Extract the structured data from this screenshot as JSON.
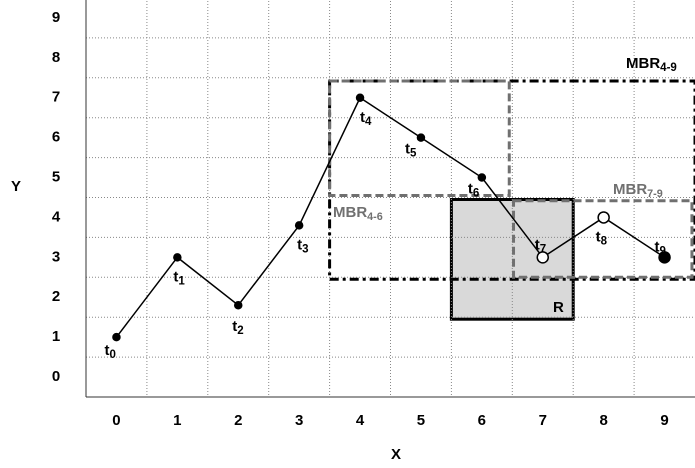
{
  "chart_data": {
    "type": "line",
    "x_label": "X",
    "y_label": "Y",
    "x": [
      0,
      1,
      2,
      3,
      4,
      5,
      6,
      7,
      8,
      9
    ],
    "values": [
      1,
      3,
      1.8,
      3.8,
      7,
      6,
      5,
      3,
      4,
      3
    ],
    "markers": [
      "dot",
      "dot",
      "dot",
      "dot",
      "dot",
      "dot",
      "dot",
      "hollow",
      "hollow",
      "filled"
    ],
    "labels": [
      {
        "text": "t",
        "sub": "0"
      },
      {
        "text": "t",
        "sub": "1"
      },
      {
        "text": "t",
        "sub": "2"
      },
      {
        "text": "t",
        "sub": "3"
      },
      {
        "text": "t",
        "sub": "4"
      },
      {
        "text": "t",
        "sub": "5"
      },
      {
        "text": "t",
        "sub": "6"
      },
      {
        "text": "t",
        "sub": "7"
      },
      {
        "text": "t",
        "sub": "8"
      },
      {
        "text": "t",
        "sub": "9"
      }
    ],
    "color": "#000000",
    "xlim": [
      -0.5,
      9.5
    ],
    "ylim": [
      -0.5,
      9.5
    ],
    "xticks": [
      0,
      1,
      2,
      3,
      4,
      5,
      6,
      7,
      8,
      9
    ],
    "yticks": [
      0,
      1,
      2,
      3,
      4,
      5,
      6,
      7,
      8,
      9
    ],
    "grid": true,
    "xgrid": [
      0.5,
      1.5,
      2.5,
      3.5,
      4.5,
      5.5,
      6.5,
      7.5,
      8.5
    ],
    "ygrid": [
      0.5,
      1.5,
      2.5,
      3.5,
      4.5,
      5.5,
      6.5,
      7.5,
      8.5
    ],
    "rectangles": [
      {
        "label": {
          "text": "R"
        },
        "x": [
          5.5,
          7.5
        ],
        "y": [
          1.45,
          4.45
        ],
        "style": "solid",
        "color": "#000000",
        "fill": "#d9d9d9"
      },
      {
        "label": {
          "text": "MBR",
          "sub": "4-9"
        },
        "x": [
          3.5,
          9.5
        ],
        "y": [
          2.45,
          7.42
        ],
        "style": "dash-dot",
        "color": "#000000"
      },
      {
        "label": {
          "text": "MBR",
          "sub": "4-6"
        },
        "x": [
          3.5,
          6.45
        ],
        "y": [
          4.55,
          7.42
        ],
        "style": "dashed",
        "color": "#707070"
      },
      {
        "label": {
          "text": "MBR",
          "sub": "7-9"
        },
        "x": [
          6.52,
          9.45
        ],
        "y": [
          2.5,
          4.42
        ],
        "style": "dashed",
        "color": "#707070"
      }
    ]
  }
}
